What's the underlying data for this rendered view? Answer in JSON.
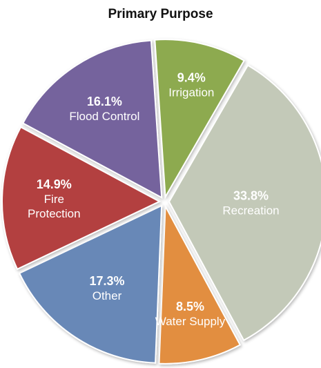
{
  "chart_data": {
    "type": "pie",
    "title": "Primary Purpose",
    "slices": [
      {
        "label": "Recreation",
        "label_lines": [
          "Recreation"
        ],
        "value": 33.8,
        "value_text": "33.8%",
        "color": "#c3c9b8"
      },
      {
        "label": "Water Supply",
        "label_lines": [
          "Water Supply"
        ],
        "value": 8.5,
        "value_text": "8.5%",
        "color": "#e28e3f"
      },
      {
        "label": "Other",
        "label_lines": [
          "Other"
        ],
        "value": 17.3,
        "value_text": "17.3%",
        "color": "#6888b7"
      },
      {
        "label": "Fire Protection",
        "label_lines": [
          "Fire",
          "Protection"
        ],
        "value": 14.9,
        "value_text": "14.9%",
        "color": "#b34140"
      },
      {
        "label": "Flood Control",
        "label_lines": [
          "Flood Control"
        ],
        "value": 16.1,
        "value_text": "16.1%",
        "color": "#74639d"
      },
      {
        "label": "Irrigation",
        "label_lines": [
          "Irrigation"
        ],
        "value": 9.4,
        "value_text": "9.4%",
        "color": "#8daa4f"
      }
    ]
  }
}
